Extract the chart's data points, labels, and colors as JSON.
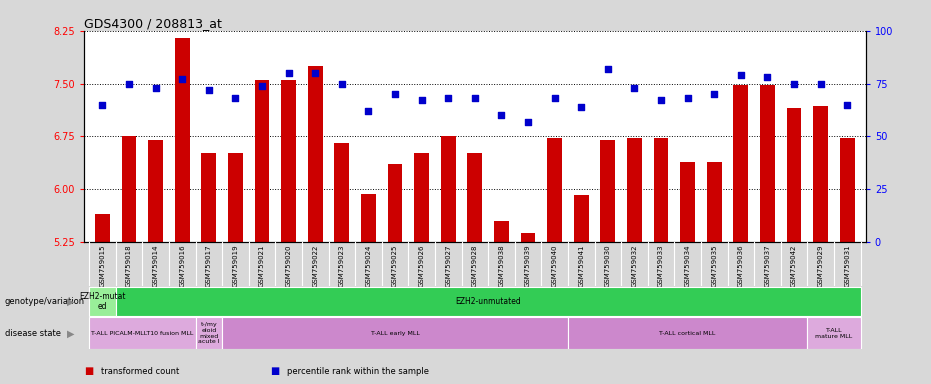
{
  "title": "GDS4300 / 208813_at",
  "samples": [
    "GSM759015",
    "GSM759018",
    "GSM759014",
    "GSM759016",
    "GSM759017",
    "GSM759019",
    "GSM759021",
    "GSM759020",
    "GSM759022",
    "GSM759023",
    "GSM759024",
    "GSM759025",
    "GSM759026",
    "GSM759027",
    "GSM759028",
    "GSM759038",
    "GSM759039",
    "GSM759040",
    "GSM759041",
    "GSM759030",
    "GSM759032",
    "GSM759033",
    "GSM759034",
    "GSM759035",
    "GSM759036",
    "GSM759037",
    "GSM759042",
    "GSM759029",
    "GSM759031"
  ],
  "bar_values": [
    5.65,
    6.75,
    6.7,
    8.15,
    6.52,
    6.52,
    7.55,
    7.55,
    7.75,
    6.65,
    5.93,
    6.35,
    6.52,
    6.75,
    6.52,
    5.55,
    5.37,
    6.72,
    5.92,
    6.7,
    6.72,
    6.72,
    6.38,
    6.38,
    7.48,
    7.48,
    7.15,
    7.18,
    6.72
  ],
  "dot_values": [
    65,
    75,
    73,
    77,
    72,
    68,
    74,
    80,
    80,
    75,
    62,
    70,
    67,
    68,
    68,
    60,
    57,
    68,
    64,
    82,
    73,
    67,
    68,
    70,
    79,
    78,
    75,
    75,
    65
  ],
  "ylim_left": [
    5.25,
    8.25
  ],
  "ylim_right": [
    0,
    100
  ],
  "yticks_left": [
    5.25,
    6.0,
    6.75,
    7.5,
    8.25
  ],
  "yticks_right": [
    0,
    25,
    50,
    75,
    100
  ],
  "bar_color": "#cc0000",
  "dot_color": "#0000cc",
  "bg_color": "#d8d8d8",
  "plot_bg_color": "#ffffff",
  "grid_color": "#000000",
  "label_bg_color": "#c8c8c8",
  "genotype_row": [
    {
      "label": "EZH2-mutat\ned",
      "start": 0,
      "end": 1,
      "color": "#99ee99"
    },
    {
      "label": "EZH2-unmutated",
      "start": 1,
      "end": 29,
      "color": "#33cc55"
    }
  ],
  "disease_row": [
    {
      "label": "T-ALL PICALM-MLLT10 fusion MLL",
      "start": 0,
      "end": 4,
      "color": "#ddaadd"
    },
    {
      "label": "t-/my\neloid\nmixed\nacute l",
      "start": 4,
      "end": 5,
      "color": "#ddaadd"
    },
    {
      "label": "T-ALL early MLL",
      "start": 5,
      "end": 18,
      "color": "#cc88cc"
    },
    {
      "label": "T-ALL cortical MLL",
      "start": 18,
      "end": 27,
      "color": "#cc88cc"
    },
    {
      "label": "T-ALL\nmature MLL",
      "start": 27,
      "end": 29,
      "color": "#ddaadd"
    }
  ],
  "legend_items": [
    {
      "label": "transformed count",
      "color": "#cc0000"
    },
    {
      "label": "percentile rank within the sample",
      "color": "#0000cc"
    }
  ]
}
